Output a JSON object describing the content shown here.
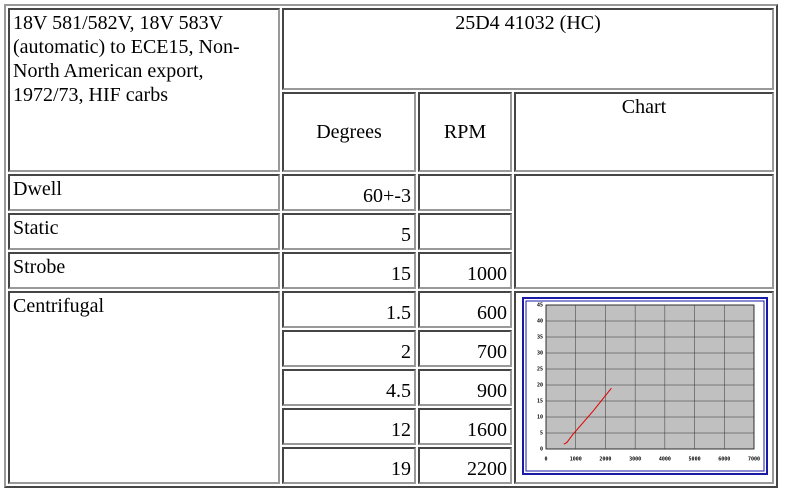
{
  "title_cell": "18V 581/582V, 18V 583V (automatic) to ECE15, Non-North American export, 1972/73, HIF carbs",
  "code": "25D4 41032 (HC)",
  "columns": [
    "Degrees",
    "RPM",
    "Chart"
  ],
  "rows": [
    {
      "label": "Dwell",
      "degrees": "60+-3"
    },
    {
      "label": "Static",
      "degrees": "5"
    },
    {
      "label": "Strobe",
      "degrees": "15",
      "rpm": "1000"
    }
  ],
  "centrifugal": {
    "label": "Centrifugal",
    "points": [
      [
        "1.5",
        "600"
      ],
      [
        "2",
        "700"
      ],
      [
        "4.5",
        "900"
      ],
      [
        "12",
        "1600"
      ],
      [
        "19",
        "2200"
      ]
    ]
  },
  "chart_data": {
    "type": "line",
    "x": [
      600,
      700,
      900,
      1600,
      2200
    ],
    "series": [
      {
        "name": "Centrifugal",
        "color": "#e00000",
        "values": [
          1.5,
          2,
          4.5,
          12,
          19
        ]
      }
    ],
    "xlim": [
      0,
      7000
    ],
    "xticks": [
      0,
      1000,
      2000,
      3000,
      4000,
      5000,
      6000,
      7000
    ],
    "ylim": [
      0,
      45
    ],
    "yticks": [
      0,
      5,
      10,
      15,
      20,
      25,
      30,
      35,
      40,
      45
    ],
    "grid": true
  }
}
